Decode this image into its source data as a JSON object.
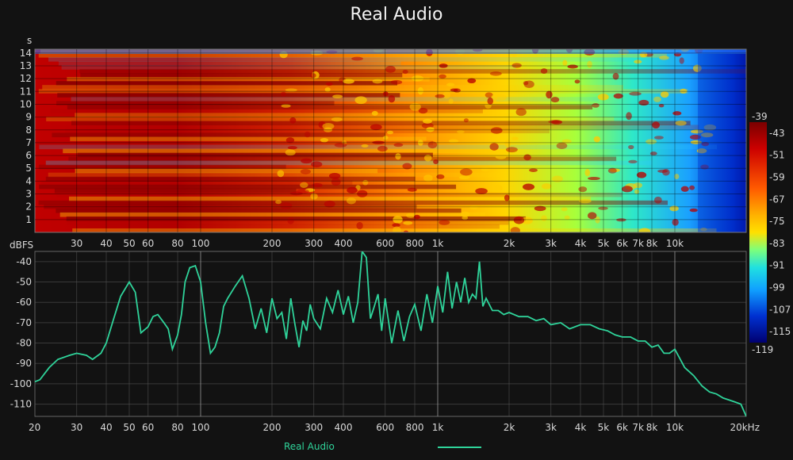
{
  "title": "Real Audio",
  "colors": {
    "background": "#121212",
    "line": "#2fd39a",
    "grid": "#5a5a5a"
  },
  "chart_data": [
    {
      "type": "heatmap",
      "title": "",
      "xlabel": "",
      "ylabel": "s",
      "x_scale": "log",
      "xlim": [
        20,
        20000
      ],
      "ylim": [
        0,
        14.3
      ],
      "x_ticks": [
        {
          "v": 30,
          "t": "30"
        },
        {
          "v": 40,
          "t": "40"
        },
        {
          "v": 50,
          "t": "50"
        },
        {
          "v": 60,
          "t": "60"
        },
        {
          "v": 80,
          "t": "80"
        },
        {
          "v": 100,
          "t": "100"
        },
        {
          "v": 200,
          "t": "200"
        },
        {
          "v": 300,
          "t": "300"
        },
        {
          "v": 400,
          "t": "400"
        },
        {
          "v": 600,
          "t": "600"
        },
        {
          "v": 800,
          "t": "800"
        },
        {
          "v": 1000,
          "t": "1k"
        },
        {
          "v": 2000,
          "t": "2k"
        },
        {
          "v": 3000,
          "t": "3k"
        },
        {
          "v": 4000,
          "t": "4k"
        },
        {
          "v": 5000,
          "t": "5k"
        },
        {
          "v": 6000,
          "t": "6k"
        },
        {
          "v": 7000,
          "t": "7k"
        },
        {
          "v": 8000,
          "t": "8k"
        },
        {
          "v": 10000,
          "t": "10k"
        }
      ],
      "y_ticks": [
        "1",
        "2",
        "3",
        "4",
        "5",
        "6",
        "7",
        "8",
        "9",
        "10",
        "11",
        "12",
        "13",
        "14"
      ],
      "colorbar": {
        "range": [
          -119,
          -39
        ],
        "ticks": [
          "-39",
          "-43",
          "-51",
          "-59",
          "-67",
          "-75",
          "-83",
          "-91",
          "-99",
          "-107",
          "-115",
          "-119"
        ]
      },
      "grid": true
    },
    {
      "type": "line",
      "title": "",
      "xlabel": "",
      "ylabel": "dBFS",
      "x_scale": "log",
      "xlim": [
        20,
        20000
      ],
      "ylim": [
        -116,
        -35
      ],
      "x_ticks": [
        {
          "v": 20,
          "t": "20"
        },
        {
          "v": 30,
          "t": "30"
        },
        {
          "v": 40,
          "t": "40"
        },
        {
          "v": 50,
          "t": "50"
        },
        {
          "v": 60,
          "t": "60"
        },
        {
          "v": 80,
          "t": "80"
        },
        {
          "v": 100,
          "t": "100"
        },
        {
          "v": 200,
          "t": "200"
        },
        {
          "v": 300,
          "t": "300"
        },
        {
          "v": 400,
          "t": "400"
        },
        {
          "v": 600,
          "t": "600"
        },
        {
          "v": 800,
          "t": "800"
        },
        {
          "v": 1000,
          "t": "1k"
        },
        {
          "v": 2000,
          "t": "2k"
        },
        {
          "v": 3000,
          "t": "3k"
        },
        {
          "v": 4000,
          "t": "4k"
        },
        {
          "v": 5000,
          "t": "5k"
        },
        {
          "v": 6000,
          "t": "6k"
        },
        {
          "v": 7000,
          "t": "7k"
        },
        {
          "v": 8000,
          "t": "8k"
        },
        {
          "v": 10000,
          "t": "10k"
        },
        {
          "v": 20000,
          "t": "20kHz"
        }
      ],
      "y_ticks": [
        -40,
        -50,
        -60,
        -70,
        -80,
        -90,
        -100,
        -110
      ],
      "grid": true,
      "legend": "bottom-center",
      "series": [
        {
          "name": "Real Audio",
          "x": [
            20,
            21,
            23,
            25,
            28,
            30,
            33,
            35,
            38,
            40,
            43,
            46,
            50,
            53,
            56,
            60,
            63,
            66,
            70,
            73,
            76,
            80,
            83,
            86,
            90,
            95,
            100,
            105,
            110,
            115,
            120,
            125,
            130,
            140,
            150,
            160,
            170,
            180,
            190,
            200,
            210,
            220,
            230,
            240,
            250,
            260,
            270,
            280,
            290,
            300,
            320,
            340,
            360,
            380,
            400,
            420,
            440,
            460,
            480,
            500,
            520,
            540,
            560,
            580,
            600,
            640,
            680,
            720,
            760,
            800,
            850,
            900,
            950,
            1000,
            1050,
            1100,
            1150,
            1200,
            1250,
            1300,
            1350,
            1400,
            1450,
            1500,
            1550,
            1600,
            1700,
            1800,
            1900,
            2000,
            2200,
            2400,
            2600,
            2800,
            3000,
            3300,
            3600,
            4000,
            4400,
            4800,
            5200,
            5600,
            6000,
            6500,
            7000,
            7500,
            8000,
            8500,
            9000,
            9500,
            10000,
            11000,
            12000,
            13000,
            14000,
            15000,
            16000,
            17000,
            18000,
            19000,
            20000
          ],
          "y": [
            -99,
            -98,
            -92,
            -88,
            -86,
            -85,
            -86,
            -88,
            -85,
            -80,
            -68,
            -57,
            -50,
            -55,
            -75,
            -72,
            -67,
            -66,
            -70,
            -73,
            -83,
            -76,
            -66,
            -50,
            -43,
            -42,
            -50,
            -70,
            -85,
            -82,
            -75,
            -62,
            -58,
            -52,
            -47,
            -58,
            -73,
            -63,
            -75,
            -58,
            -68,
            -65,
            -78,
            -58,
            -71,
            -82,
            -69,
            -74,
            -61,
            -68,
            -73,
            -58,
            -65,
            -54,
            -66,
            -57,
            -70,
            -60,
            -35,
            -38,
            -68,
            -62,
            -56,
            -74,
            -58,
            -80,
            -64,
            -79,
            -67,
            -61,
            -74,
            -56,
            -70,
            -52,
            -65,
            -45,
            -63,
            -50,
            -60,
            -48,
            -60,
            -56,
            -58,
            -40,
            -62,
            -58,
            -64,
            -64,
            -66,
            -65,
            -67,
            -67,
            -69,
            -68,
            -71,
            -70,
            -73,
            -71,
            -71,
            -73,
            -74,
            -76,
            -77,
            -77,
            -79,
            -79,
            -82,
            -81,
            -85,
            -85,
            -83,
            -92,
            -96,
            -101,
            -104,
            -105,
            -107,
            -108,
            -109,
            -110,
            -116
          ]
        }
      ]
    }
  ],
  "legend_label": "Real Audio"
}
